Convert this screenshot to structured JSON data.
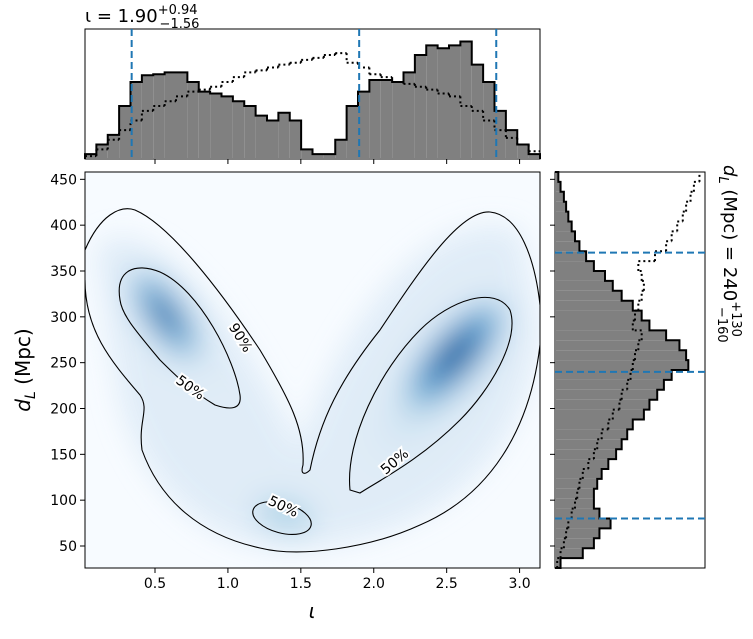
{
  "chart_data": [
    {
      "type": "histogram",
      "orientation": "vertical",
      "title": {
        "text": "ι = 1.90",
        "upper": "+0.94",
        "lower": "−1.56"
      },
      "bins": [
        0.02,
        0.098,
        0.176,
        0.254,
        0.332,
        0.41,
        0.488,
        0.566,
        0.644,
        0.722,
        0.8,
        0.878,
        0.956,
        1.034,
        1.112,
        1.19,
        1.268,
        1.346,
        1.424,
        1.502,
        1.58,
        1.658,
        1.736,
        1.814,
        1.892,
        1.97,
        2.048,
        2.126,
        2.204,
        2.282,
        2.36,
        2.438,
        2.516,
        2.594,
        2.672,
        2.75,
        2.828,
        2.906,
        2.984,
        3.062,
        3.14
      ],
      "series": [
        {
          "style": "filled",
          "color": "#808080",
          "values": [
            5,
            15,
            25,
            55,
            80,
            87,
            88,
            90,
            90,
            80,
            70,
            68,
            65,
            60,
            55,
            45,
            40,
            48,
            40,
            10,
            5,
            5,
            20,
            55,
            70,
            82,
            82,
            80,
            90,
            108,
            118,
            115,
            118,
            122,
            98,
            80,
            50,
            30,
            15,
            5
          ]
        },
        {
          "style": "dotted",
          "color": "#000000",
          "values": [
            3,
            10,
            20,
            30,
            40,
            50,
            55,
            60,
            65,
            70,
            72,
            75,
            80,
            85,
            90,
            92,
            95,
            98,
            100,
            103,
            105,
            108,
            110,
            100,
            95,
            88,
            85,
            80,
            78,
            75,
            72,
            68,
            65,
            55,
            50,
            40,
            30,
            22,
            15,
            8
          ]
        }
      ],
      "xlim": [
        0.02,
        3.14
      ],
      "ylim": [
        0,
        135
      ],
      "lines": [
        0.34,
        1.9,
        2.84
      ],
      "line_color": "#1f77b4"
    },
    {
      "type": "density",
      "xlabel": "ι",
      "ylabel": {
        "var": "d",
        "sub": "L",
        "rest": " (Mpc)"
      },
      "xlim": [
        0.02,
        3.14
      ],
      "ylim": [
        26,
        458
      ],
      "xticks": [
        0.5,
        {
          "value": 1,
          "label": "1.0"
        },
        1.5,
        {
          "value": 2,
          "label": "2.0"
        },
        2.5,
        {
          "value": 3,
          "label": "3.0"
        }
      ],
      "yticks": [
        50,
        100,
        150,
        200,
        250,
        300,
        350,
        400,
        450
      ],
      "contour_labels": [
        "90%",
        "50%",
        "50%",
        "50%"
      ],
      "cmap_color": "#08306b"
    },
    {
      "type": "histogram",
      "orientation": "horizontal",
      "label": {
        "var": "d",
        "sub": "L",
        "rest": " (Mpc) = 240",
        "upper": "+130",
        "lower": "−160"
      },
      "bins": [
        26,
        36.8,
        47.6,
        58.4,
        69.2,
        80,
        90.8,
        101.6,
        112.4,
        123.2,
        134,
        144.8,
        155.6,
        166.4,
        177.2,
        188,
        198.8,
        209.6,
        220.4,
        231.2,
        242,
        252.8,
        263.6,
        274.4,
        285.2,
        296,
        306.8,
        317.6,
        328.4,
        339.2,
        350,
        360.8,
        371.6,
        382.4,
        393.2,
        404,
        414.8,
        425.6,
        436.4,
        447.2,
        458
      ],
      "series": [
        {
          "style": "filled",
          "color": "#808080",
          "values": [
            5,
            25,
            35,
            40,
            50,
            40,
            35,
            35,
            38,
            42,
            48,
            55,
            60,
            65,
            70,
            80,
            85,
            92,
            98,
            105,
            120,
            118,
            112,
            100,
            85,
            78,
            70,
            60,
            52,
            45,
            35,
            28,
            22,
            18,
            15,
            12,
            10,
            8,
            5,
            3
          ]
        },
        {
          "style": "dotted",
          "color": "#000000",
          "values": [
            2,
            5,
            8,
            10,
            12,
            15,
            18,
            20,
            22,
            25,
            30,
            35,
            38,
            42,
            48,
            52,
            58,
            60,
            65,
            68,
            70,
            72,
            75,
            78,
            70,
            72,
            75,
            78,
            80,
            78,
            75,
            90,
            100,
            105,
            110,
            115,
            118,
            122,
            125,
            130
          ]
        }
      ],
      "xlim": [
        0,
        135
      ],
      "ylim": [
        26,
        458
      ],
      "lines": [
        80,
        240,
        370
      ],
      "line_color": "#1f77b4"
    }
  ]
}
